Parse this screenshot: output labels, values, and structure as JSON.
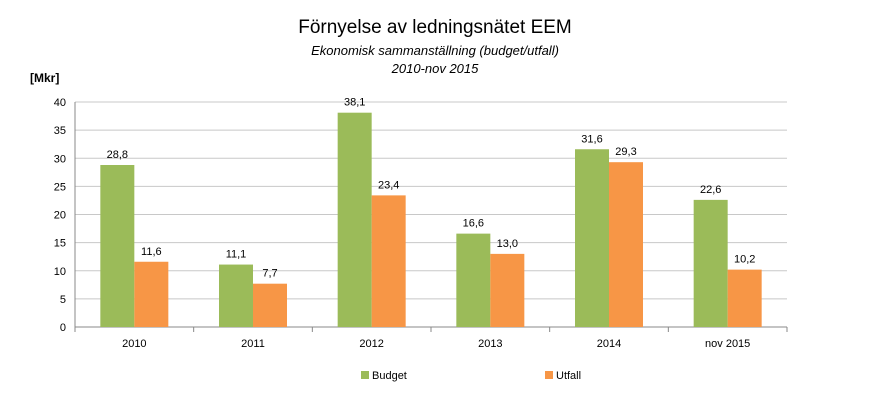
{
  "chart_data": {
    "type": "bar",
    "title": "Förnyelse av ledningsnätet EEM",
    "subtitle": "Ekonomisk sammanställning (budget/utfall)",
    "subtitle2": "2010-nov 2015",
    "ylabel": "[Mkr]",
    "ylim": [
      0,
      40
    ],
    "yticks": [
      "0",
      "5",
      "10",
      "15",
      "20",
      "25",
      "30",
      "35",
      "40"
    ],
    "grid": true,
    "legend_position": "bottom",
    "categories": [
      "2010",
      "2011",
      "2012",
      "2013",
      "2014",
      "nov 2015"
    ],
    "series": [
      {
        "name": "Budget",
        "color": "#9BBB59",
        "values": [
          28.8,
          11.1,
          38.1,
          16.6,
          31.6,
          22.6
        ],
        "labels": [
          "28,8",
          "11,1",
          "38,1",
          "16,6",
          "31,6",
          "22,6"
        ]
      },
      {
        "name": "Utfall",
        "color": "#F79646",
        "values": [
          11.6,
          7.7,
          23.4,
          13.0,
          29.3,
          10.2
        ],
        "labels": [
          "11,6",
          "7,7",
          "23,4",
          "13,0",
          "29,3",
          "10,2"
        ]
      }
    ]
  }
}
